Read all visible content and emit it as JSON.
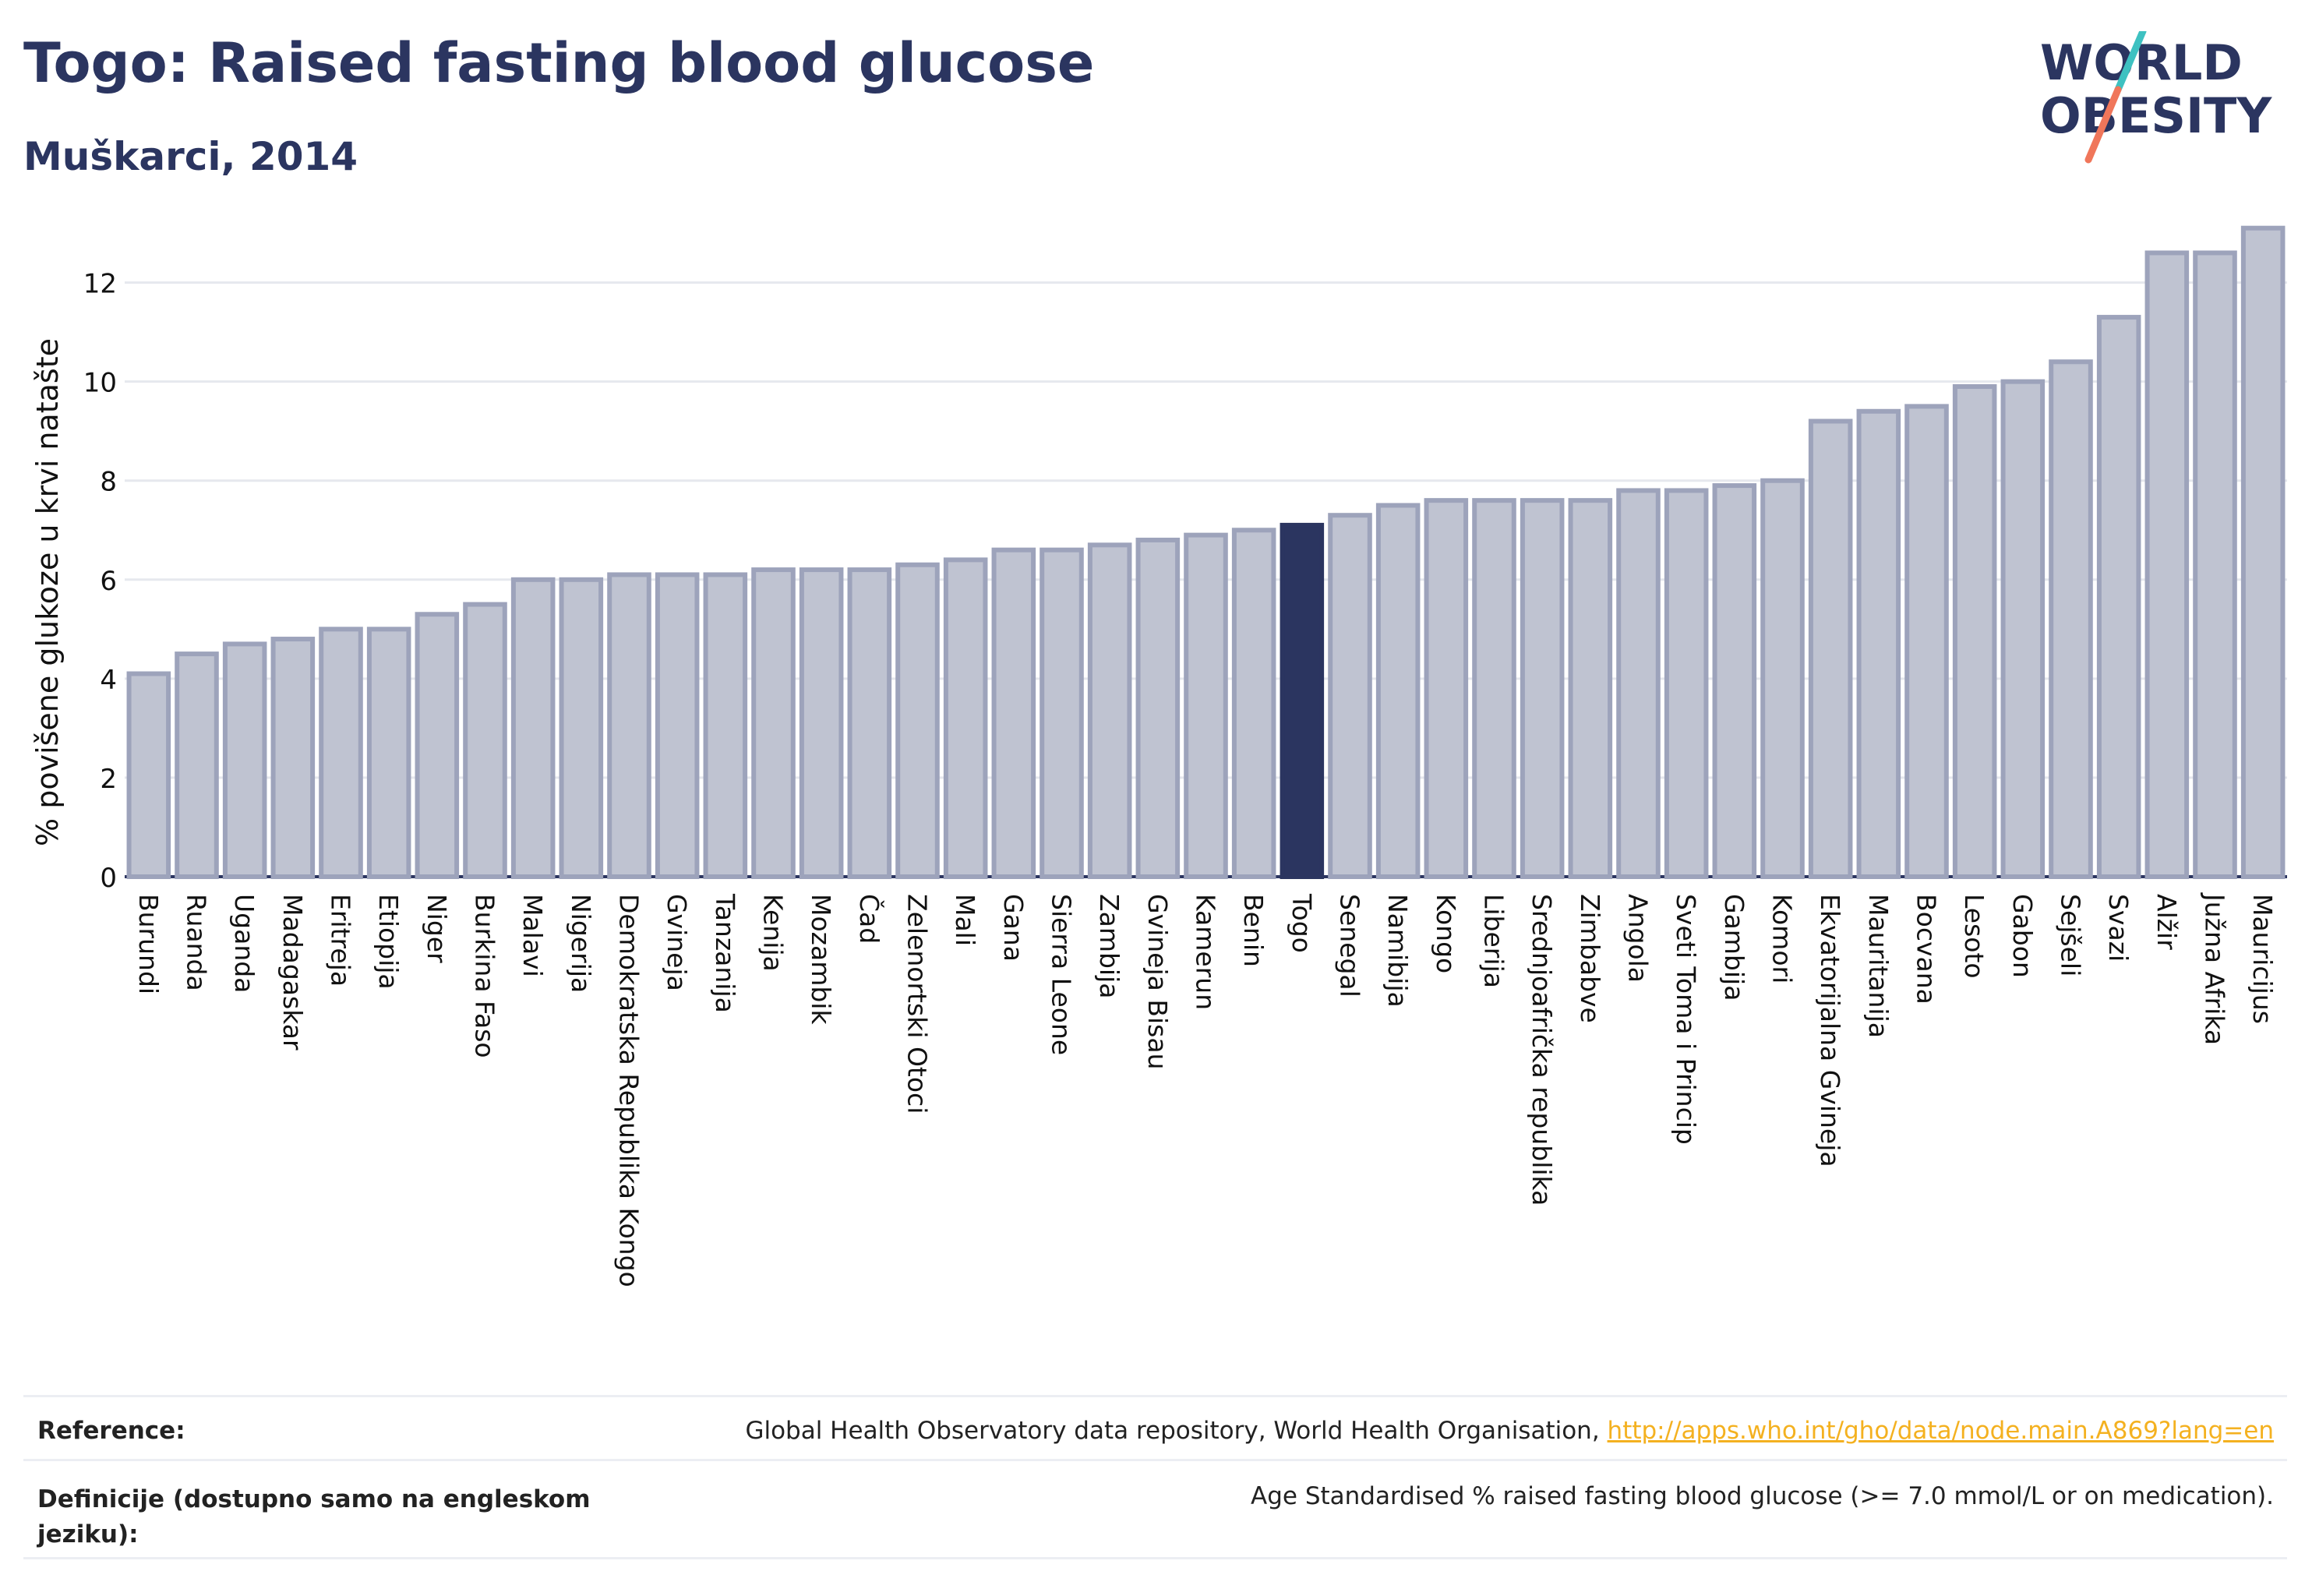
{
  "header": {
    "title": "Togo: Raised fasting blood glucose",
    "subtitle": "Muškarci, 2014"
  },
  "logo": {
    "line1": "WORLD",
    "line2": "OBESITY"
  },
  "colors": {
    "bar": "#bfc3d1",
    "bar_stroke": "#9da3bb",
    "highlight": "#2b3560",
    "text": "#2b3560",
    "link": "#f4b120",
    "logo_teal": "#3ec1c1",
    "logo_coral": "#f0765a"
  },
  "chart_data": {
    "type": "bar",
    "title": "Togo: Raised fasting blood glucose",
    "subtitle": "Muškarci, 2014",
    "ylabel": "% povišene glukoze u krvi natašte",
    "xlabel": "",
    "ylim": [
      0,
      13.3
    ],
    "yticks": [
      0,
      2,
      4,
      6,
      8,
      10,
      12
    ],
    "grid": true,
    "highlight": "Togo",
    "categories": [
      "Burundi",
      "Ruanda",
      "Uganda",
      "Madagaskar",
      "Eritreja",
      "Etiopija",
      "Niger",
      "Burkina Faso",
      "Malavi",
      "Nigerija",
      "Demokratska Republika Kongo",
      "Gvineja",
      "Tanzanija",
      "Kenija",
      "Mozambik",
      "Čad",
      "Zelenortski Otoci",
      "Mali",
      "Gana",
      "Sierra Leone",
      "Zambija",
      "Gvineja Bisau",
      "Kamerun",
      "Benin",
      "Togo",
      "Senegal",
      "Namibija",
      "Kongo",
      "Liberija",
      "Srednjoafrička republika",
      "Zimbabve",
      "Angola",
      "Sveti Toma i Princip",
      "Gambija",
      "Komori",
      "Ekvatorijalna Gvineja",
      "Mauritanija",
      "Bocvana",
      "Lesoto",
      "Gabon",
      "Sejšeli",
      "Svazi",
      "Alžir",
      "Južna Afrika",
      "Mauricijus"
    ],
    "values": [
      4.1,
      4.5,
      4.7,
      4.8,
      5.0,
      5.0,
      5.3,
      5.5,
      6.0,
      6.0,
      6.1,
      6.1,
      6.1,
      6.2,
      6.2,
      6.2,
      6.3,
      6.4,
      6.6,
      6.6,
      6.7,
      6.8,
      6.9,
      7.0,
      7.1,
      7.3,
      7.5,
      7.6,
      7.6,
      7.6,
      7.6,
      7.8,
      7.8,
      7.9,
      8.0,
      9.2,
      9.4,
      9.5,
      9.9,
      10.0,
      10.4,
      11.3,
      12.6,
      12.6,
      13.1
    ]
  },
  "footer": {
    "reference_label": "Reference:",
    "reference_text": "Global Health Observatory data repository, World Health Organisation, ",
    "reference_link": "http://apps.who.int/gho/data/node.main.A869?lang=en",
    "definition_label": "Definicije (dostupno samo na engleskom jeziku):",
    "definition_text": "Age Standardised % raised fasting blood glucose (>= 7.0 mmol/L or on medication)."
  }
}
